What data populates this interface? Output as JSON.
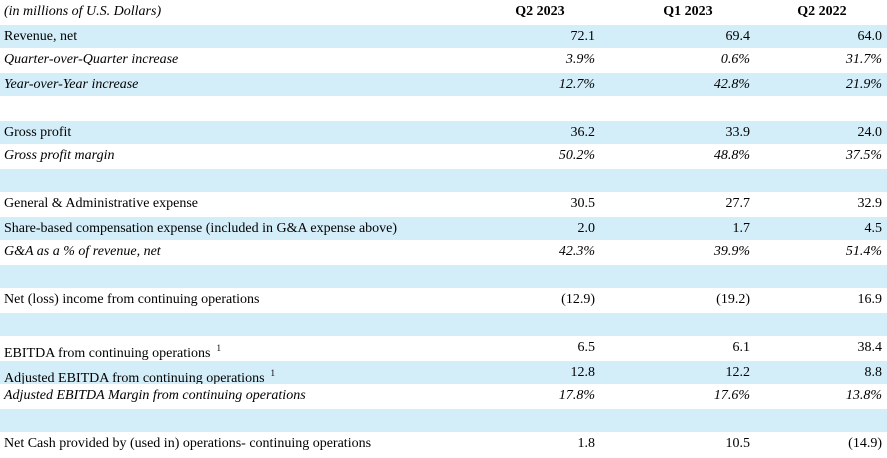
{
  "header": {
    "unit_note": "(in millions of U.S. Dollars)",
    "columns": [
      "Q2 2023",
      "Q1 2023",
      "Q2 2022"
    ]
  },
  "rows": [
    {
      "label": "Revenue, net",
      "values": [
        "72.1",
        "69.4",
        "64.0"
      ],
      "italic": false
    },
    {
      "label": "Quarter-over-Quarter increase",
      "values": [
        "3.9%",
        "0.6%",
        "31.7%"
      ],
      "italic": true
    },
    {
      "label": "Year-over-Year increase",
      "values": [
        "12.7%",
        "42.8%",
        "21.9%"
      ],
      "italic": true
    },
    {
      "label": "",
      "values": [
        "",
        "",
        ""
      ],
      "italic": false
    },
    {
      "label": "Gross profit",
      "values": [
        "36.2",
        "33.9",
        "24.0"
      ],
      "italic": false
    },
    {
      "label": "Gross profit margin",
      "values": [
        "50.2%",
        "48.8%",
        "37.5%"
      ],
      "italic": true
    },
    {
      "label": "",
      "values": [
        "",
        "",
        ""
      ],
      "italic": false
    },
    {
      "label": "General & Administrative expense",
      "values": [
        "30.5",
        "27.7",
        "32.9"
      ],
      "italic": false
    },
    {
      "label": "Share-based compensation expense (included in G&A expense above)",
      "values": [
        "2.0",
        "1.7",
        "4.5"
      ],
      "italic": false
    },
    {
      "label": "G&A as a % of revenue, net",
      "values": [
        "42.3%",
        "39.9%",
        "51.4%"
      ],
      "italic": true
    },
    {
      "label": "",
      "values": [
        "",
        "",
        ""
      ],
      "italic": false
    },
    {
      "label": "Net (loss) income from continuing operations",
      "values": [
        "(12.9)",
        "(19.2)",
        "16.9"
      ],
      "italic": false
    },
    {
      "label": "",
      "values": [
        "",
        "",
        ""
      ],
      "italic": false
    },
    {
      "label": "EBITDA from continuing operations",
      "footnote": "1",
      "values": [
        "6.5",
        "6.1",
        "38.4"
      ],
      "italic": false
    },
    {
      "label": "Adjusted EBITDA from continuing operations",
      "footnote": "1",
      "values": [
        "12.8",
        "12.2",
        "8.8"
      ],
      "italic": false
    },
    {
      "label": "Adjusted EBITDA Margin from continuing operations",
      "values": [
        "17.8%",
        "17.6%",
        "13.8%"
      ],
      "italic": true
    },
    {
      "label": "",
      "values": [
        "",
        "",
        ""
      ],
      "italic": false
    },
    {
      "label": "Net Cash provided by (used in) operations- continuing operations",
      "values": [
        "1.8",
        "10.5",
        "(14.9)"
      ],
      "italic": false
    }
  ],
  "colors": {
    "shaded_row": "#d3eef9",
    "plain_row": "#ffffff"
  }
}
